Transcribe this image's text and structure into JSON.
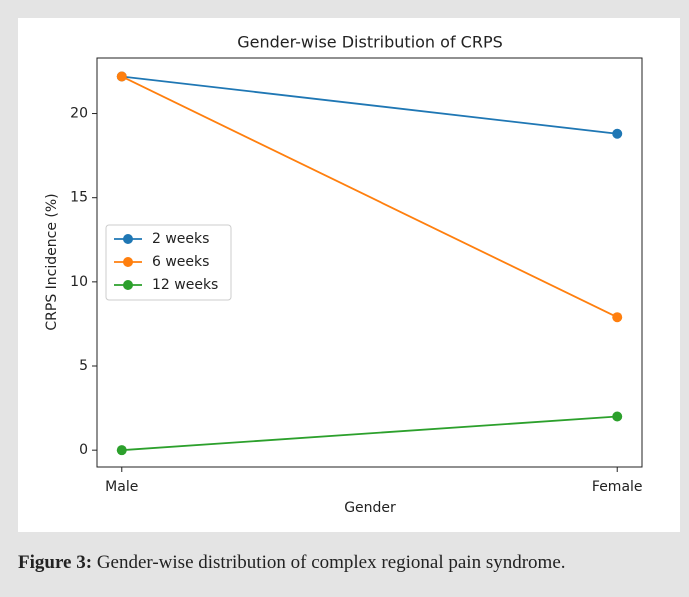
{
  "chart_data": {
    "type": "line",
    "title": "Gender-wise Distribution of CRPS",
    "xlabel": "Gender",
    "ylabel": "CRPS Incidence (%)",
    "categories": [
      "Male",
      "Female"
    ],
    "series": [
      {
        "name": "2 weeks",
        "color": "#1f77b4",
        "values": [
          22.2,
          18.8
        ]
      },
      {
        "name": "6 weeks",
        "color": "#ff7f0e",
        "values": [
          22.2,
          7.9
        ]
      },
      {
        "name": "12 weeks",
        "color": "#2ca02c",
        "values": [
          0,
          2.0
        ]
      }
    ],
    "ylim": [
      -1.0,
      23.3
    ],
    "yticks": [
      0,
      5,
      10,
      15,
      20
    ],
    "grid": false,
    "legend": "center left"
  },
  "caption": {
    "label": "Figure 3:",
    "text": "Gender-wise distribution of complex regional pain syndrome."
  }
}
